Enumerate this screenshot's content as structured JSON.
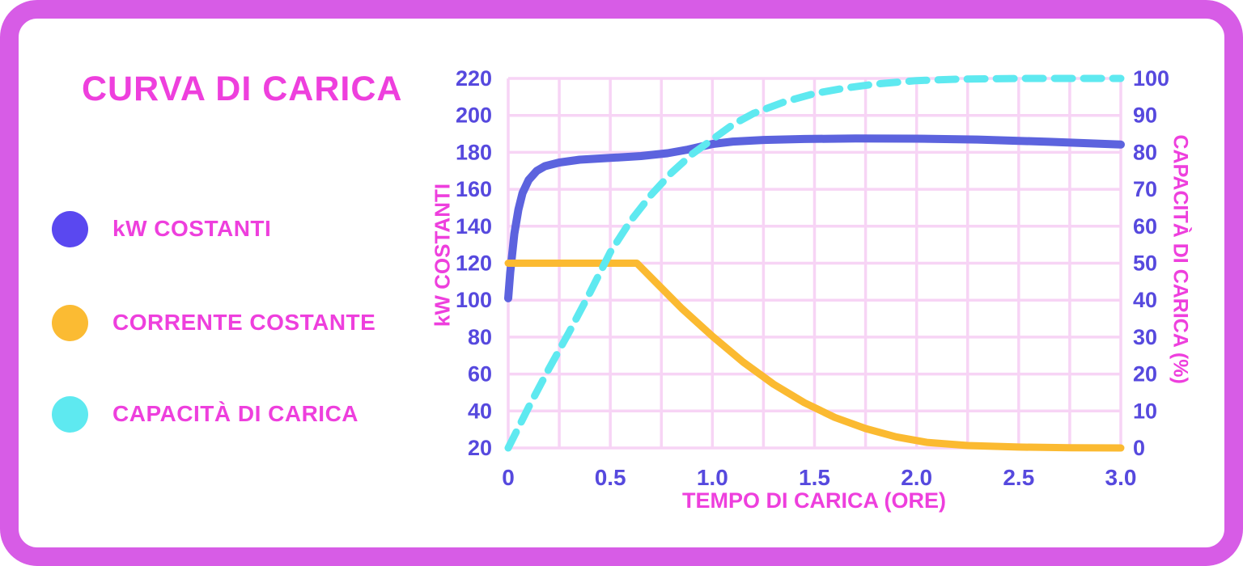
{
  "frame": {
    "border_color": "#d75ce6",
    "background": "#ffffff"
  },
  "title": {
    "text": "CURVA DI CARICA",
    "color": "#ee3fdd"
  },
  "legend": {
    "items": [
      {
        "label": "kW COSTANTI",
        "color": "#5a48f0"
      },
      {
        "label": "CORRENTE COSTANTE",
        "color": "#fbbb33"
      },
      {
        "label": "CAPACITÀ DI CARICA",
        "color": "#5ee9f0"
      }
    ]
  },
  "chart_data": {
    "type": "line",
    "title": "CURVA DI CARICA",
    "grid": true,
    "grid_color": "#f7d4f5",
    "tick_color": "#5649de",
    "axis_label_color": "#ee3fdd",
    "x_axis": {
      "label": "TEMPO DI CARICA (ORE)",
      "ticks": [
        "0",
        "0.5",
        "1.0",
        "1.5",
        "2.0",
        "2.5",
        "3.0"
      ],
      "tick_values": [
        0,
        0.5,
        1.0,
        1.5,
        2.0,
        2.5,
        3.0
      ],
      "min": 0,
      "max": 3,
      "grid_step": 0.25
    },
    "y_left": {
      "label": "kW COSTANTI",
      "ticks": [
        "220",
        "200",
        "180",
        "160",
        "140",
        "120",
        "100",
        "80",
        "60",
        "40",
        "20"
      ],
      "tick_values": [
        220,
        200,
        180,
        160,
        140,
        120,
        100,
        80,
        60,
        40,
        20
      ],
      "min": 20,
      "max": 220,
      "grid_step": 20
    },
    "y_right": {
      "label": "CAPACITÀ DI CARICA (%)",
      "ticks": [
        "100",
        "90",
        "80",
        "70",
        "60",
        "50",
        "40",
        "30",
        "20",
        "10",
        "0"
      ],
      "tick_values": [
        100,
        90,
        80,
        70,
        60,
        50,
        40,
        30,
        20,
        10,
        0
      ],
      "min": 0,
      "max": 100,
      "grid_step": 10
    },
    "series": [
      {
        "name": "kW COSTANTI",
        "axis": "left",
        "color": "#5c63de",
        "style": "solid",
        "width": 10,
        "points": [
          [
            0,
            101
          ],
          [
            0.01,
            115
          ],
          [
            0.03,
            136
          ],
          [
            0.05,
            149
          ],
          [
            0.07,
            158
          ],
          [
            0.1,
            165
          ],
          [
            0.14,
            170
          ],
          [
            0.18,
            172.5
          ],
          [
            0.25,
            174.5
          ],
          [
            0.35,
            176
          ],
          [
            0.5,
            177
          ],
          [
            0.65,
            178
          ],
          [
            0.78,
            179.5
          ],
          [
            0.88,
            181.5
          ],
          [
            1.0,
            184.5
          ],
          [
            1.1,
            185.8
          ],
          [
            1.25,
            186.7
          ],
          [
            1.45,
            187.2
          ],
          [
            1.7,
            187.5
          ],
          [
            2.0,
            187.4
          ],
          [
            2.3,
            186.9
          ],
          [
            2.65,
            185.7
          ],
          [
            3.0,
            184.2
          ]
        ]
      },
      {
        "name": "CORRENTE COSTANTE",
        "axis": "left",
        "color": "#fbba31",
        "style": "solid",
        "width": 9,
        "points": [
          [
            0,
            120
          ],
          [
            0.63,
            120
          ],
          [
            0.72,
            110
          ],
          [
            0.85,
            95.5
          ],
          [
            1.0,
            80.5
          ],
          [
            1.15,
            66.5
          ],
          [
            1.3,
            54.5
          ],
          [
            1.45,
            44.5
          ],
          [
            1.6,
            36.5
          ],
          [
            1.75,
            30.5
          ],
          [
            1.9,
            26
          ],
          [
            2.05,
            23
          ],
          [
            2.25,
            21.3
          ],
          [
            2.5,
            20.5
          ],
          [
            2.75,
            20.1
          ],
          [
            3.0,
            20
          ]
        ]
      },
      {
        "name": "CAPACITÀ DI CARICA",
        "axis": "right",
        "color": "#5ee9f0",
        "style": "dashed",
        "width": 9,
        "points": [
          [
            0,
            0
          ],
          [
            0.1,
            11
          ],
          [
            0.2,
            21.5
          ],
          [
            0.3,
            31.5
          ],
          [
            0.4,
            42
          ],
          [
            0.5,
            53
          ],
          [
            0.6,
            61.5
          ],
          [
            0.7,
            68.5
          ],
          [
            0.8,
            74.5
          ],
          [
            0.9,
            79.5
          ],
          [
            1.0,
            83.5
          ],
          [
            1.1,
            87.5
          ],
          [
            1.2,
            90.5
          ],
          [
            1.35,
            93.6
          ],
          [
            1.5,
            95.9
          ],
          [
            1.65,
            97.4
          ],
          [
            1.8,
            98.5
          ],
          [
            2.0,
            99.4
          ],
          [
            2.2,
            99.8
          ],
          [
            2.5,
            100
          ],
          [
            3.0,
            100
          ]
        ]
      }
    ]
  }
}
